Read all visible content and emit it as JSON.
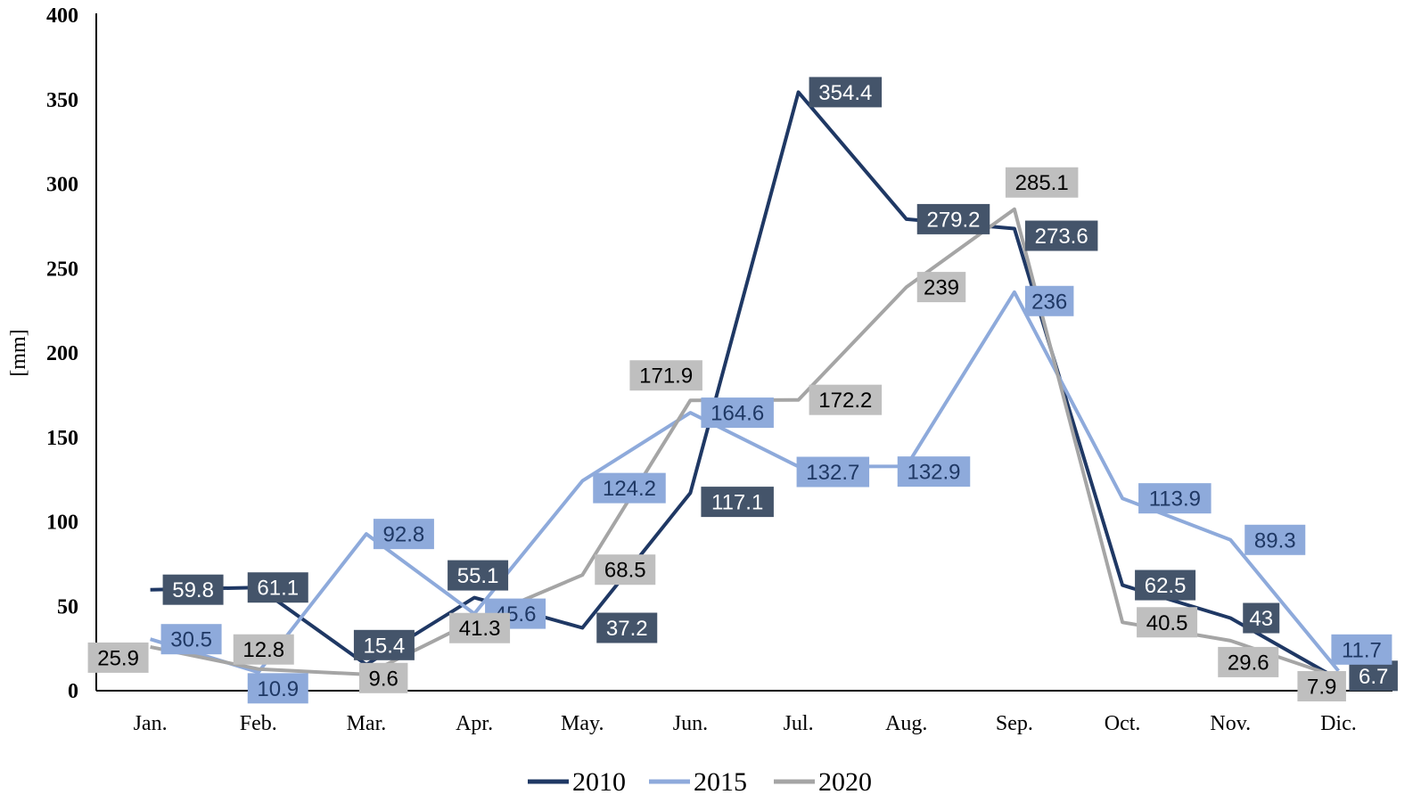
{
  "chart_data": {
    "type": "line",
    "title": "",
    "xlabel": "",
    "ylabel": "[mm]",
    "ylim": [
      0,
      400
    ],
    "yticks": [
      0,
      50,
      100,
      150,
      200,
      250,
      300,
      350,
      400
    ],
    "categories": [
      "Jan.",
      "Feb.",
      "Mar.",
      "Apr.",
      "May.",
      "Jun.",
      "Jul.",
      "Aug.",
      "Sep.",
      "Oct.",
      "Nov.",
      "Dic."
    ],
    "grid": false,
    "legend_position": "bottom",
    "series": [
      {
        "name": "2010",
        "color": "#1f3864",
        "label_bg": "#44546a",
        "label_fg": "#ffffff",
        "values": [
          59.8,
          61.1,
          15.4,
          55.1,
          37.2,
          117.1,
          354.4,
          279.2,
          273.6,
          62.5,
          43,
          6.7
        ]
      },
      {
        "name": "2015",
        "color": "#8eaadb",
        "label_bg": "#8eaadb",
        "label_fg": "#1f3864",
        "values": [
          30.5,
          10.9,
          92.8,
          45.6,
          124.2,
          164.6,
          132.7,
          132.9,
          236,
          113.9,
          89.3,
          11.7
        ]
      },
      {
        "name": "2020",
        "color": "#a5a5a5",
        "label_bg": "#bfbfbf",
        "label_fg": "#000000",
        "values": [
          25.9,
          12.8,
          9.6,
          41.3,
          68.5,
          171.9,
          172.2,
          239,
          285.1,
          40.5,
          29.6,
          7.9
        ]
      }
    ]
  }
}
